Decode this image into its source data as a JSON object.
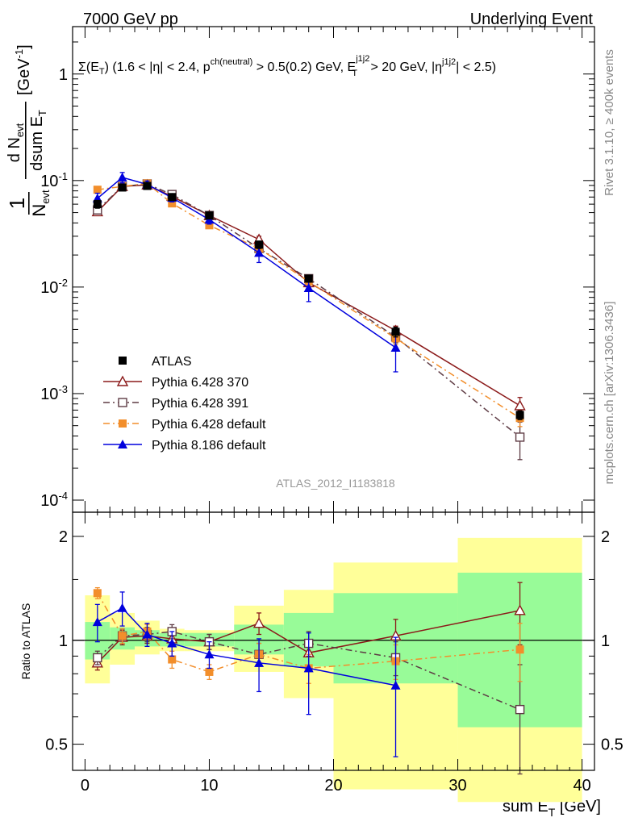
{
  "header": {
    "left_title": "7000 GeV pp",
    "right_title": "Underlying Event"
  },
  "chart_data": [
    {
      "type": "line",
      "panel": "main",
      "title_parts": {
        "text1": "Σ(E",
        "text1_sub": "T",
        "text2": ") (1.6 < |η| < 2.4, p",
        "text2_sup": "ch(neutral)",
        "text3": " > 0.5(0.2) GeV, E",
        "text3_sup": "j1j2",
        "text3_sub": "T",
        "text4": " > 20 GeV, |η",
        "text4_sup": "j1j2",
        "text5": "| < 2.5)"
      },
      "ylabel_parts": {
        "prefix": "1",
        "nevt": "N",
        "nevt_sub": "evt",
        "dN": "d N",
        "dN_sub": "evt",
        "dsum": "dsum E",
        "dsum_sub": "T",
        "unit": "[GeV",
        "unit_sup": "-1",
        "unit_close": "]"
      },
      "yscale": "log",
      "ylim": [
        0.0001,
        2.0
      ],
      "xlim": [
        -1,
        41
      ],
      "y_ticks": [
        {
          "value": 0.0001,
          "base": "10",
          "exp": "-4"
        },
        {
          "value": 0.001,
          "base": "10",
          "exp": "-3"
        },
        {
          "value": 0.01,
          "base": "10",
          "exp": "-2"
        },
        {
          "value": 0.1,
          "base": "10",
          "exp": "-1"
        },
        {
          "value": 1,
          "base": "1",
          "exp": ""
        }
      ],
      "series": [
        {
          "name": "ATLAS",
          "style": "data",
          "color": "#000000",
          "marker": "square-filled",
          "points": [
            {
              "x": 1,
              "y": 0.06,
              "err": 0.005
            },
            {
              "x": 3,
              "y": 0.086,
              "err": 0.005
            },
            {
              "x": 5,
              "y": 0.089,
              "err": 0.006
            },
            {
              "x": 7,
              "y": 0.07,
              "err": 0.005
            },
            {
              "x": 10,
              "y": 0.047,
              "err": 0.003
            },
            {
              "x": 14,
              "y": 0.025,
              "err": 0.002
            },
            {
              "x": 18,
              "y": 0.012,
              "err": 0.0009
            },
            {
              "x": 25,
              "y": 0.0038,
              "err": 0.0004
            },
            {
              "x": 35,
              "y": 0.00063,
              "err": 6e-05
            }
          ]
        },
        {
          "name": "Pythia 6.428 370",
          "style": "solid",
          "color": "#8b1a1a",
          "marker": "triangle-open",
          "points": [
            {
              "x": 1,
              "y": 0.051,
              "err": 0.003
            },
            {
              "x": 3,
              "y": 0.088,
              "err": 0.004
            },
            {
              "x": 5,
              "y": 0.091,
              "err": 0.004
            },
            {
              "x": 7,
              "y": 0.071,
              "err": 0.004
            },
            {
              "x": 10,
              "y": 0.047,
              "err": 0.003
            },
            {
              "x": 14,
              "y": 0.028,
              "err": 0.002
            },
            {
              "x": 18,
              "y": 0.011,
              "err": 0.001
            },
            {
              "x": 25,
              "y": 0.0039,
              "err": 0.0004
            },
            {
              "x": 35,
              "y": 0.00077,
              "err": 0.00015
            }
          ]
        },
        {
          "name": "Pythia 6.428 391",
          "style": "dashdot",
          "color": "#5e3b44",
          "marker": "square-open",
          "points": [
            {
              "x": 1,
              "y": 0.053,
              "err": 0.003
            },
            {
              "x": 3,
              "y": 0.088,
              "err": 0.004
            },
            {
              "x": 5,
              "y": 0.093,
              "err": 0.004
            },
            {
              "x": 7,
              "y": 0.074,
              "err": 0.004
            },
            {
              "x": 10,
              "y": 0.047,
              "err": 0.003
            },
            {
              "x": 14,
              "y": 0.023,
              "err": 0.002
            },
            {
              "x": 18,
              "y": 0.012,
              "err": 0.001
            },
            {
              "x": 25,
              "y": 0.0034,
              "err": 0.0004
            },
            {
              "x": 35,
              "y": 0.00039,
              "err": 0.00015
            }
          ]
        },
        {
          "name": "Pythia 6.428 default",
          "style": "dashdot",
          "color": "#f28e2b",
          "marker": "square-filled",
          "points": [
            {
              "x": 1,
              "y": 0.082,
              "err": 0.003
            },
            {
              "x": 3,
              "y": 0.088,
              "err": 0.004
            },
            {
              "x": 5,
              "y": 0.094,
              "err": 0.004
            },
            {
              "x": 7,
              "y": 0.061,
              "err": 0.004
            },
            {
              "x": 10,
              "y": 0.038,
              "err": 0.002
            },
            {
              "x": 14,
              "y": 0.023,
              "err": 0.002
            },
            {
              "x": 18,
              "y": 0.0113,
              "err": 0.001
            },
            {
              "x": 25,
              "y": 0.0033,
              "err": 0.0004
            },
            {
              "x": 35,
              "y": 0.00059,
              "err": 0.0001
            }
          ]
        },
        {
          "name": "Pythia 8.186 default",
          "style": "solid",
          "color": "#0000dd",
          "marker": "triangle-filled",
          "points": [
            {
              "x": 1,
              "y": 0.068,
              "err": 0.008
            },
            {
              "x": 3,
              "y": 0.107,
              "err": 0.012
            },
            {
              "x": 5,
              "y": 0.092,
              "err": 0.007
            },
            {
              "x": 7,
              "y": 0.069,
              "err": 0.006
            },
            {
              "x": 10,
              "y": 0.043,
              "err": 0.004
            },
            {
              "x": 14,
              "y": 0.021,
              "err": 0.004
            },
            {
              "x": 18,
              "y": 0.0098,
              "err": 0.0025
            },
            {
              "x": 25,
              "y": 0.0027,
              "err": 0.0011
            }
          ]
        }
      ],
      "legend": {
        "placement": "lower-left"
      },
      "analysis_label": "ATLAS_2012_I1183818"
    },
    {
      "type": "line",
      "panel": "ratio",
      "ylabel": "Ratio to ATLAS",
      "yscale": "log",
      "ylim": [
        0.42,
        2.35
      ],
      "xlim": [
        -1,
        41
      ],
      "xlabel": "sum E",
      "xlabel_sub": "T",
      "xlabel_unit": " [GeV]",
      "x_ticks": [
        {
          "value": 0,
          "label": "0"
        },
        {
          "value": 10,
          "label": "10"
        },
        {
          "value": 20,
          "label": "20"
        },
        {
          "value": 30,
          "label": "30"
        },
        {
          "value": 40,
          "label": "40"
        }
      ],
      "y_ticks": [
        {
          "value": 0.5,
          "label": "0.5"
        },
        {
          "value": 1,
          "label": "1"
        },
        {
          "value": 2,
          "label": "2"
        }
      ],
      "uncertainty_bands": [
        {
          "x_lo": 0,
          "x_hi": 2,
          "inner": [
            0.88,
            1.13
          ],
          "outer": [
            0.75,
            1.35
          ]
        },
        {
          "x_lo": 2,
          "x_hi": 4,
          "inner": [
            0.94,
            1.09
          ],
          "outer": [
            0.85,
            1.2
          ]
        },
        {
          "x_lo": 4,
          "x_hi": 6,
          "inner": [
            0.96,
            1.07
          ],
          "outer": [
            0.91,
            1.14
          ]
        },
        {
          "x_lo": 6,
          "x_hi": 8,
          "inner": [
            0.96,
            1.05
          ],
          "outer": [
            0.93,
            1.08
          ]
        },
        {
          "x_lo": 8,
          "x_hi": 12,
          "inner": [
            0.96,
            1.05
          ],
          "outer": [
            0.93,
            1.07
          ]
        },
        {
          "x_lo": 12,
          "x_hi": 16,
          "inner": [
            0.91,
            1.11
          ],
          "outer": [
            0.81,
            1.26
          ]
        },
        {
          "x_lo": 16,
          "x_hi": 20,
          "inner": [
            0.84,
            1.2
          ],
          "outer": [
            0.68,
            1.4
          ]
        },
        {
          "x_lo": 20,
          "x_hi": 30,
          "inner": [
            0.75,
            1.37
          ],
          "outer": [
            0.37,
            1.68
          ]
        },
        {
          "x_lo": 30,
          "x_hi": 40,
          "inner": [
            0.56,
            1.57
          ],
          "outer": [
            0.34,
            1.98
          ]
        }
      ],
      "series": [
        {
          "name": "Pythia 6.428 370",
          "style": "solid",
          "color": "#8b1a1a",
          "marker": "triangle-open",
          "points": [
            {
              "x": 1,
              "y": 0.86,
              "err": 0.04
            },
            {
              "x": 3,
              "y": 1.02,
              "err": 0.05
            },
            {
              "x": 5,
              "y": 1.03,
              "err": 0.05
            },
            {
              "x": 7,
              "y": 1.01,
              "err": 0.05
            },
            {
              "x": 10,
              "y": 0.99,
              "err": 0.05
            },
            {
              "x": 14,
              "y": 1.12,
              "err": 0.08
            },
            {
              "x": 18,
              "y": 0.92,
              "err": 0.08
            },
            {
              "x": 25,
              "y": 1.03,
              "err": 0.12
            },
            {
              "x": 35,
              "y": 1.22,
              "err": 0.25
            }
          ]
        },
        {
          "name": "Pythia 6.428 391",
          "style": "dashdot",
          "color": "#5e3b44",
          "marker": "square-open",
          "points": [
            {
              "x": 1,
              "y": 0.89,
              "err": 0.04
            },
            {
              "x": 3,
              "y": 1.03,
              "err": 0.05
            },
            {
              "x": 5,
              "y": 1.04,
              "err": 0.05
            },
            {
              "x": 7,
              "y": 1.06,
              "err": 0.05
            },
            {
              "x": 10,
              "y": 0.99,
              "err": 0.05
            },
            {
              "x": 14,
              "y": 0.91,
              "err": 0.07
            },
            {
              "x": 18,
              "y": 0.98,
              "err": 0.08
            },
            {
              "x": 25,
              "y": 0.89,
              "err": 0.1
            },
            {
              "x": 35,
              "y": 0.63,
              "err": 0.22
            }
          ]
        },
        {
          "name": "Pythia 6.428 default",
          "style": "dashdot",
          "color": "#f28e2b",
          "marker": "square-filled",
          "points": [
            {
              "x": 1,
              "y": 1.37,
              "err": 0.05
            },
            {
              "x": 3,
              "y": 1.03,
              "err": 0.05
            },
            {
              "x": 5,
              "y": 1.06,
              "err": 0.05
            },
            {
              "x": 7,
              "y": 0.88,
              "err": 0.05
            },
            {
              "x": 10,
              "y": 0.81,
              "err": 0.04
            },
            {
              "x": 14,
              "y": 0.91,
              "err": 0.07
            },
            {
              "x": 18,
              "y": 0.83,
              "err": 0.08
            },
            {
              "x": 25,
              "y": 0.87,
              "err": 0.1
            },
            {
              "x": 35,
              "y": 0.94,
              "err": 0.18
            }
          ]
        },
        {
          "name": "Pythia 8.186 default",
          "style": "solid",
          "color": "#0000dd",
          "marker": "triangle-filled",
          "points": [
            {
              "x": 1,
              "y": 1.13,
              "err": 0.14
            },
            {
              "x": 3,
              "y": 1.24,
              "err": 0.14
            },
            {
              "x": 5,
              "y": 1.04,
              "err": 0.08
            },
            {
              "x": 7,
              "y": 0.98,
              "err": 0.08
            },
            {
              "x": 10,
              "y": 0.91,
              "err": 0.08
            },
            {
              "x": 14,
              "y": 0.86,
              "err": 0.15
            },
            {
              "x": 18,
              "y": 0.83,
              "err": 0.22
            },
            {
              "x": 25,
              "y": 0.74,
              "err": 0.28
            }
          ]
        }
      ]
    }
  ],
  "side_labels": {
    "rivet": "Rivet 3.1.10, ≥ 400k events",
    "mcplots": "mcplots.cern.ch [arXiv:1306.3436]"
  },
  "colors": {
    "band_inner": "#98fb98",
    "band_outer": "#ffff99",
    "side_text": "#888888",
    "analysis_label": "#999999"
  }
}
